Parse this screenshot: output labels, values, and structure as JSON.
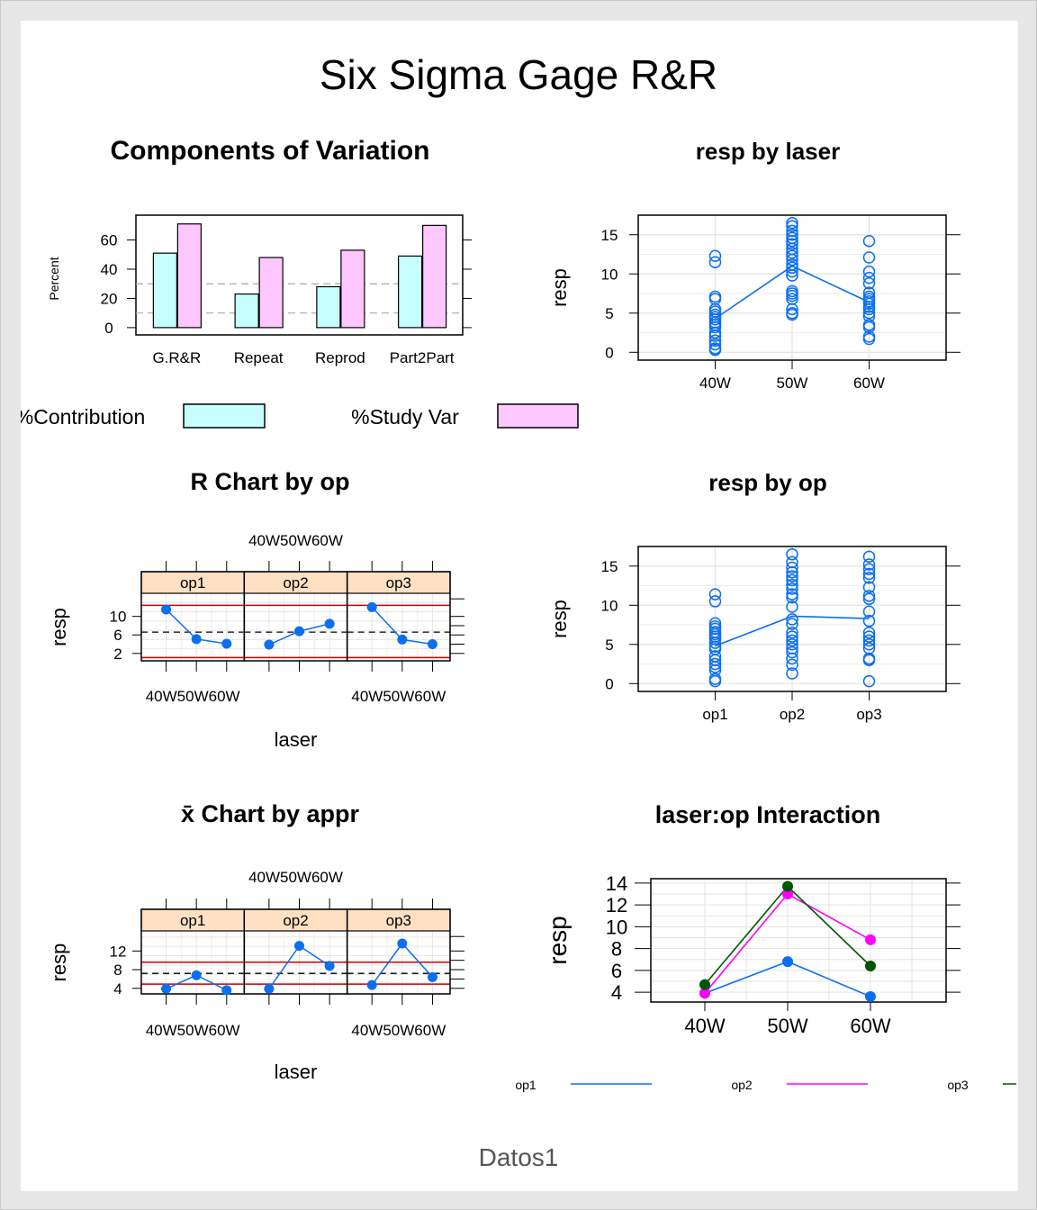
{
  "page": {
    "title": "Six Sigma Gage R&R",
    "footer": "Datos1"
  },
  "colors": {
    "contribution": "#c7ffff",
    "study_var": "#ffc7ff",
    "blue": "#0b6ff0",
    "magenta": "#ff00ff",
    "green": "#005500",
    "strip": "#ffe0c2",
    "limit_red": "#cc0000"
  },
  "chart_data": [
    {
      "id": "components",
      "type": "bar",
      "title": "Components of Variation",
      "ylabel": "Percent",
      "categories": [
        "G.R&R",
        "Repeat",
        "Reprod",
        "Part2Part"
      ],
      "series": [
        {
          "name": "%Contribution",
          "values": [
            51,
            23,
            28,
            49
          ]
        },
        {
          "name": "%Study Var",
          "values": [
            71,
            48,
            53,
            70
          ]
        }
      ],
      "yticks": [
        0,
        20,
        40,
        60
      ],
      "ylim": [
        -5,
        77
      ],
      "reference_lines": [
        10,
        30
      ],
      "legend_position": "bottom"
    },
    {
      "id": "resp_by_laser",
      "type": "scatter",
      "title": "resp by laser",
      "ylabel": "resp",
      "categories": [
        "40W",
        "50W",
        "60W"
      ],
      "yticks": [
        0,
        5,
        10,
        15
      ],
      "ylim": [
        -1,
        17.5
      ],
      "points": [
        [
          12.3,
          11.5,
          7.1,
          6.8,
          5.5,
          5.2,
          4.8,
          4.5,
          4.2,
          3.8,
          3.5,
          3.2,
          2.5,
          2.1,
          1.5,
          1.0,
          0.5,
          0.3
        ],
        [
          16.5,
          16.1,
          15.5,
          15.0,
          14.6,
          14.2,
          13.8,
          13.2,
          12.7,
          12.3,
          11.8,
          11.2,
          10.8,
          10.3,
          9.8,
          7.8,
          7.5,
          7.2,
          6.8,
          5.5,
          5.0,
          4.8
        ],
        [
          14.2,
          12.1,
          10.3,
          9.5,
          8.8,
          7.6,
          7.1,
          6.8,
          6.5,
          6.2,
          5.8,
          5.5,
          5.0,
          4.6,
          3.5,
          3.2,
          2.0,
          1.7
        ]
      ],
      "means": [
        4.3,
        11.0,
        6.4
      ]
    },
    {
      "id": "r_chart",
      "type": "line",
      "title": "R Chart by op",
      "xlabel": "laser",
      "ylabel": "resp",
      "panels": [
        "op1",
        "op2",
        "op3"
      ],
      "categories": [
        "40W",
        "50W",
        "60W"
      ],
      "top_tick_label": "40W50W60W",
      "bottom_tick_labels": [
        "40W50W60W",
        "",
        "40W50W60W"
      ],
      "yticks": [
        2,
        6,
        10
      ],
      "ylim": [
        0.4,
        15
      ],
      "center_line": 6.6,
      "ucl": 12.4,
      "lcl": 1.1,
      "series": [
        {
          "name": "op1",
          "values": [
            11.5,
            5.1,
            4.1
          ]
        },
        {
          "name": "op2",
          "values": [
            3.9,
            6.8,
            8.4
          ]
        },
        {
          "name": "op3",
          "values": [
            12.0,
            5.0,
            4.0
          ]
        }
      ]
    },
    {
      "id": "resp_by_op",
      "type": "scatter",
      "title": "resp by op",
      "ylabel": "resp",
      "categories": [
        "op1",
        "op2",
        "op3"
      ],
      "yticks": [
        0,
        5,
        10,
        15
      ],
      "ylim": [
        -1,
        17.5
      ],
      "points": [
        [
          11.4,
          10.5,
          7.7,
          7.3,
          7.0,
          6.6,
          6.3,
          6.0,
          5.7,
          5.2,
          4.7,
          4.4,
          3.5,
          3.0,
          2.5,
          2.1,
          1.7,
          0.6,
          0.3
        ],
        [
          16.5,
          15.5,
          14.8,
          14.2,
          13.7,
          13.2,
          12.6,
          12.1,
          11.4,
          11.0,
          9.8,
          8.2,
          7.6,
          6.5,
          6.0,
          5.5,
          5.0,
          4.5,
          4.0,
          3.2,
          2.4,
          1.3
        ],
        [
          16.2,
          15.2,
          14.6,
          14.0,
          13.5,
          12.3,
          11.2,
          10.8,
          9.2,
          8.0,
          6.5,
          6.0,
          5.5,
          5.0,
          4.5,
          3.2,
          3.0,
          0.3
        ]
      ],
      "means": [
        4.8,
        8.6,
        8.3
      ]
    },
    {
      "id": "xbar_chart",
      "type": "line",
      "title": "x̄ Chart by appr",
      "xlabel": "laser",
      "ylabel": "resp",
      "panels": [
        "op1",
        "op2",
        "op3"
      ],
      "categories": [
        "40W",
        "50W",
        "60W"
      ],
      "top_tick_label": "40W50W60W",
      "bottom_tick_labels": [
        "40W50W60W",
        "",
        "40W50W60W"
      ],
      "yticks": [
        4,
        8,
        12
      ],
      "ylim": [
        2.8,
        16.3
      ],
      "center_line": 7.2,
      "ucl": 9.6,
      "lcl": 4.9,
      "series": [
        {
          "name": "op1",
          "values": [
            3.9,
            6.8,
            3.6
          ]
        },
        {
          "name": "op2",
          "values": [
            3.9,
            13.1,
            8.8
          ]
        },
        {
          "name": "op3",
          "values": [
            4.7,
            13.6,
            6.4
          ]
        }
      ]
    },
    {
      "id": "interaction",
      "type": "line",
      "title": "laser:op Interaction",
      "ylabel": "resp",
      "categories": [
        "40W",
        "50W",
        "60W"
      ],
      "yticks": [
        4,
        6,
        8,
        10,
        12,
        14
      ],
      "ylim": [
        3.1,
        14.4
      ],
      "legend_position": "bottom",
      "series": [
        {
          "name": "op1",
          "values": [
            3.9,
            6.8,
            3.6
          ]
        },
        {
          "name": "op2",
          "values": [
            3.9,
            13.0,
            8.8
          ]
        },
        {
          "name": "op3",
          "values": [
            4.7,
            13.7,
            6.4
          ]
        }
      ]
    }
  ]
}
